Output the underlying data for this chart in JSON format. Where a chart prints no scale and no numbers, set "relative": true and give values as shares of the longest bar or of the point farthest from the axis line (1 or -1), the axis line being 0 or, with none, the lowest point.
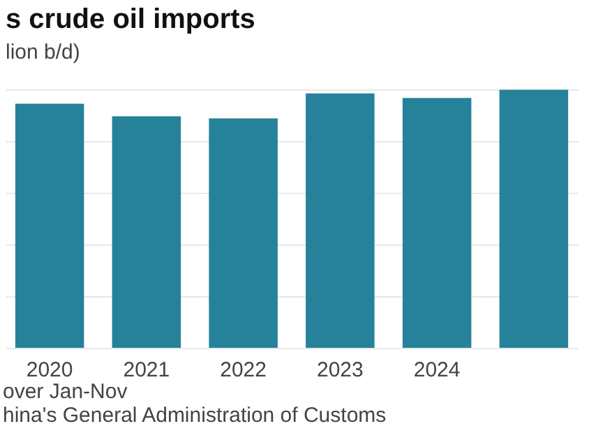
{
  "chart_data": {
    "type": "bar",
    "title": "s crude oil imports",
    "subtitle": "lion b/d)",
    "categories": [
      "2020",
      "2021",
      "2022",
      "2023",
      "2024",
      null
    ],
    "values": [
      0.946,
      0.897,
      0.889,
      0.986,
      0.968,
      1
    ],
    "color": "#26829a",
    "relative": true,
    "grid": "y",
    "annotations": [
      "over Jan-Nov",
      "hina's General Administration of Customs"
    ]
  }
}
